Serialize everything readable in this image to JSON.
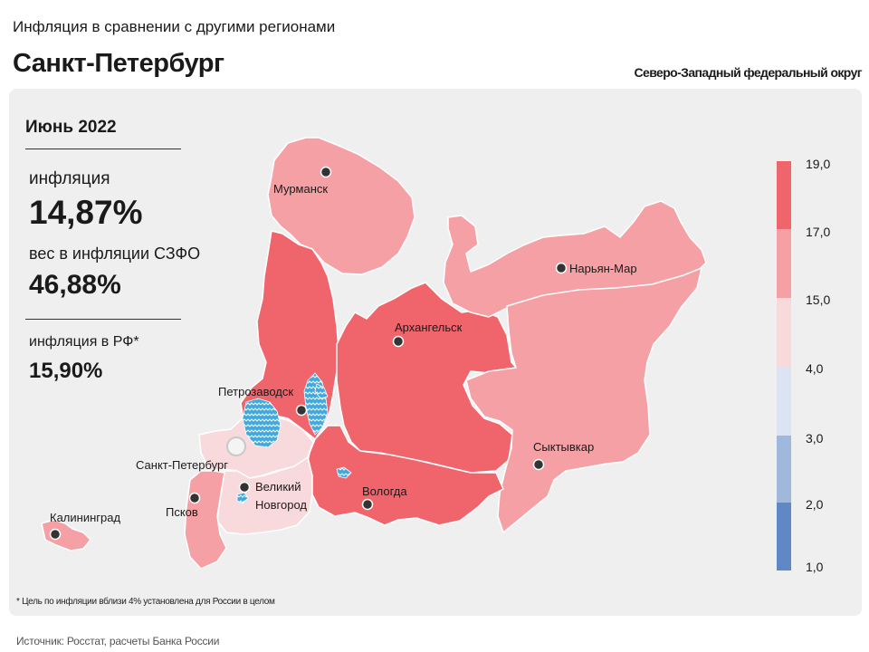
{
  "header": {
    "subtitle": "Инфляция в сравнении с другими регионами",
    "title": "Санкт-Петербург",
    "district": "Северо-Западный федеральный округ"
  },
  "stats": {
    "period": "Июнь 2022",
    "inflation_label": "инфляция",
    "inflation_value": "14,87%",
    "weight_label": "вес в инфляции  СЗФО",
    "weight_value": "46,88%",
    "rf_label": "инфляция  в РФ*",
    "rf_value": "15,90%"
  },
  "footnote": "* Цель по инфляции вблизи 4% установлена для России в целом",
  "source": "Источник: Росстат, расчеты Банка России",
  "cities": {
    "murmansk": "Мурманск",
    "naryan_mar": "Нарьян-Мар",
    "arkhangelsk": "Архангельск",
    "petrozavodsk": "Петрозаводск",
    "spb": "Санкт-Петербург",
    "syktyvkar": "Сыктывкар",
    "vnovgorod_1": "Великий",
    "vnovgorod_2": "Новгород",
    "vologda": "Вологда",
    "pskov": "Псков",
    "kaliningrad": "Калининград"
  },
  "legend": {
    "ticks": [
      "19,0",
      "17,0",
      "15,0",
      "4,0",
      "3,0",
      "2,0",
      "1,0"
    ],
    "bands": [
      {
        "from": "17,0",
        "to": "19,0",
        "color": "#f0646c"
      },
      {
        "from": "15,0",
        "to": "17,0",
        "color": "#f4a0a4"
      },
      {
        "from": "4,0",
        "to": "15,0",
        "color": "#f8dadc"
      },
      {
        "from": "3,0",
        "to": "4,0",
        "color": "#dce4f4"
      },
      {
        "from": "2,0",
        "to": "3,0",
        "color": "#a0b8dc"
      },
      {
        "from": "1,0",
        "to": "2,0",
        "color": "#6088c4"
      }
    ]
  },
  "regions": {
    "murmansk": {
      "color": "#f4a0a4"
    },
    "karelia": {
      "color": "#f0646c"
    },
    "arkhangelsk": {
      "color": "#f0646c"
    },
    "nenets": {
      "color": "#f4a0a4"
    },
    "komi": {
      "color": "#f4a0a4"
    },
    "vologda": {
      "color": "#f0646c"
    },
    "leningrad": {
      "color": "#f8dadc"
    },
    "novgorod": {
      "color": "#f8dadc"
    },
    "pskov": {
      "color": "#f4a0a4"
    },
    "kaliningrad": {
      "color": "#f4a0a4"
    },
    "lakes": {
      "color": "#3fa9e0"
    }
  }
}
